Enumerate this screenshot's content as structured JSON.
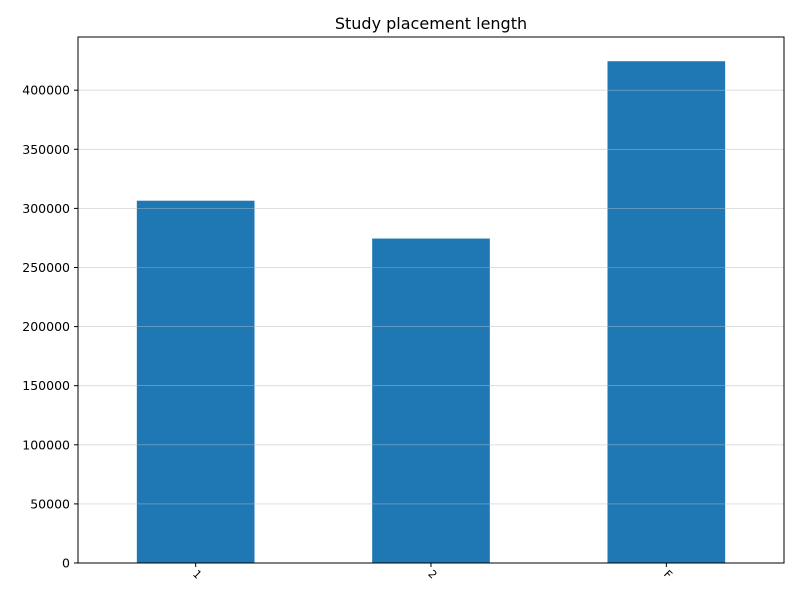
{
  "chart_data": {
    "type": "bar",
    "title": "Study placement length",
    "xlabel": "",
    "ylabel": "",
    "categories": [
      "1",
      "2",
      "F"
    ],
    "values": [
      306500,
      274500,
      424500
    ],
    "ylim": [
      0,
      445000
    ],
    "yticks": [
      0,
      50000,
      100000,
      150000,
      200000,
      250000,
      300000,
      350000,
      400000
    ],
    "ytick_labels": [
      "0",
      "50000",
      "100000",
      "150000",
      "200000",
      "250000",
      "300000",
      "350000",
      "400000"
    ],
    "grid": "horizontal",
    "bar_color": "#1f77b4",
    "grid_color": "#d9d9d9",
    "xtick_rotation": "45"
  }
}
